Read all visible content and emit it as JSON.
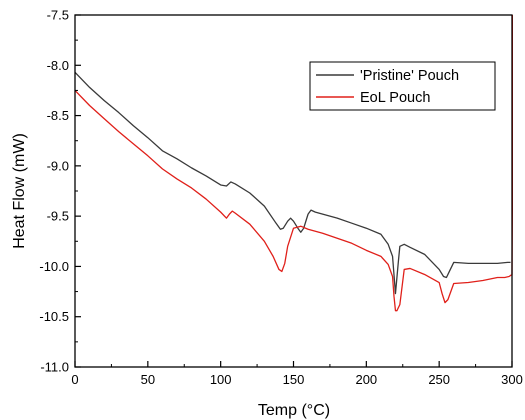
{
  "chart_data": {
    "type": "line",
    "title": "",
    "xlabel": "Temp (°C)",
    "ylabel": "Heat Flow (mW)",
    "xlim": [
      0,
      300
    ],
    "ylim": [
      -11.0,
      -7.5
    ],
    "xticks": [
      0,
      50,
      100,
      150,
      200,
      250,
      300
    ],
    "yticks": [
      -7.5,
      -8.0,
      -8.5,
      -9.0,
      -9.5,
      -10.0,
      -10.5,
      -11.0
    ],
    "xtick_labels": [
      "0",
      "50",
      "100",
      "150",
      "200",
      "250",
      "300"
    ],
    "ytick_labels": [
      "-7.5",
      "-8.0",
      "-8.5",
      "-9.0",
      "-9.5",
      "-10.0",
      "-10.5",
      "-11.0"
    ],
    "grid": false,
    "legend_position": "upper-right",
    "series": [
      {
        "name": "'Pristine' Pouch",
        "color": "#3a3a3a",
        "x": [
          0,
          10,
          20,
          30,
          40,
          50,
          60,
          70,
          80,
          90,
          100,
          104,
          107,
          110,
          120,
          130,
          138,
          141,
          143,
          146,
          148,
          150,
          153,
          155,
          157,
          160,
          162,
          165,
          170,
          180,
          190,
          200,
          210,
          215,
          218,
          220,
          222,
          223,
          226,
          230,
          240,
          250,
          253,
          255,
          257,
          260,
          270,
          280,
          290,
          297,
          299
        ],
        "y": [
          -8.07,
          -8.22,
          -8.35,
          -8.47,
          -8.6,
          -8.72,
          -8.85,
          -8.93,
          -9.02,
          -9.1,
          -9.19,
          -9.2,
          -9.16,
          -9.18,
          -9.27,
          -9.4,
          -9.57,
          -9.63,
          -9.62,
          -9.55,
          -9.52,
          -9.55,
          -9.62,
          -9.66,
          -9.62,
          -9.48,
          -9.44,
          -9.46,
          -9.48,
          -9.52,
          -9.57,
          -9.62,
          -9.68,
          -9.78,
          -9.9,
          -10.27,
          -9.95,
          -9.8,
          -9.78,
          -9.81,
          -9.88,
          -10.03,
          -10.1,
          -10.11,
          -10.05,
          -9.96,
          -9.97,
          -9.97,
          -9.97,
          -9.96,
          -9.96
        ]
      },
      {
        "name": "EoL Pouch",
        "color": "#e0201a",
        "x": [
          0,
          10,
          20,
          30,
          40,
          50,
          60,
          70,
          80,
          90,
          100,
          104,
          106,
          108,
          110,
          120,
          130,
          136,
          140,
          142,
          144,
          146,
          150,
          155,
          160,
          170,
          180,
          190,
          200,
          210,
          215,
          218,
          219,
          220,
          221,
          223,
          226,
          230,
          240,
          250,
          252,
          254,
          256,
          260,
          270,
          280,
          290,
          295,
          298,
          300,
          300.4,
          300.8
        ],
        "y": [
          -8.25,
          -8.4,
          -8.53,
          -8.66,
          -8.78,
          -8.9,
          -9.03,
          -9.13,
          -9.22,
          -9.33,
          -9.46,
          -9.52,
          -9.48,
          -9.45,
          -9.47,
          -9.58,
          -9.75,
          -9.9,
          -10.03,
          -10.05,
          -9.97,
          -9.8,
          -9.62,
          -9.6,
          -9.63,
          -9.67,
          -9.72,
          -9.77,
          -9.84,
          -9.9,
          -9.98,
          -10.1,
          -10.3,
          -10.44,
          -10.44,
          -10.38,
          -10.03,
          -10.02,
          -10.08,
          -10.16,
          -10.27,
          -10.36,
          -10.33,
          -10.17,
          -10.16,
          -10.14,
          -10.11,
          -10.11,
          -10.1,
          -10.08,
          -9.0,
          -7.5
        ]
      }
    ]
  }
}
